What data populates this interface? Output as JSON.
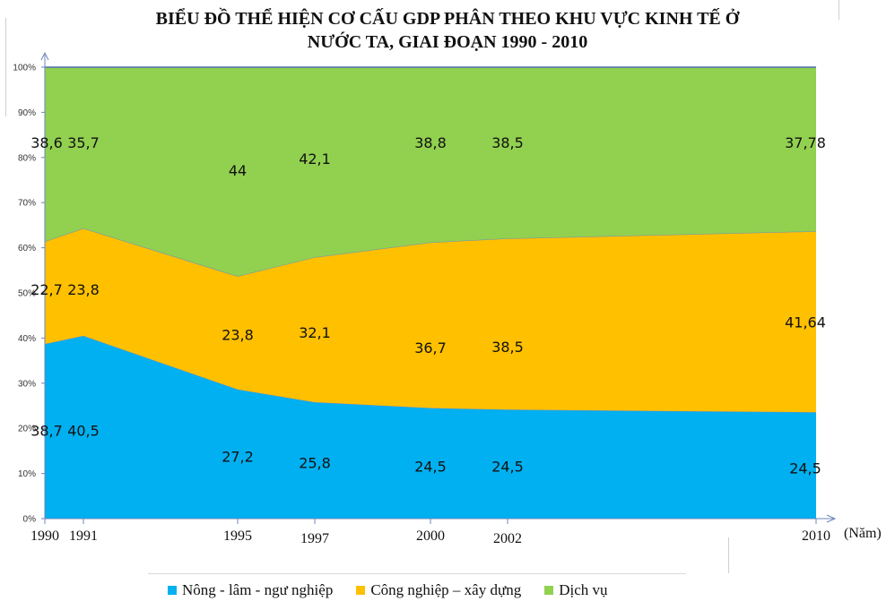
{
  "chart_data": {
    "type": "area",
    "stacked": true,
    "percent_stacked": true,
    "title": [
      "BIỂU ĐỒ THỂ HIỆN CƠ CẤU GDP PHÂN THEO KHU VỰC KINH TẾ Ở",
      "NƯỚC TA, GIAI ĐOẠN 1990 - 2010"
    ],
    "xlabel": "(Năm)",
    "ylabel": "",
    "x": [
      "1990",
      "1991",
      "1995",
      "1997",
      "2000",
      "2002",
      "2010"
    ],
    "x_numeric": [
      1990,
      1991,
      1995,
      1997,
      2000,
      2002,
      2010
    ],
    "xlim": [
      1990,
      2010
    ],
    "ylim": [
      0,
      100
    ],
    "y_ticks": [
      "0%",
      "10%",
      "20%",
      "30%",
      "40%",
      "50%",
      "60%",
      "70%",
      "80%",
      "90%",
      "100%"
    ],
    "grid": false,
    "legend_position": "bottom",
    "series": [
      {
        "name": "Nông - lâm - ngư nghiệp",
        "color": "#00b0f0",
        "values": [
          38.7,
          40.5,
          27.2,
          25.8,
          24.5,
          24.5,
          24.5
        ],
        "labels": [
          "38,7",
          "40,5",
          "27,2",
          "25,8",
          "24,5",
          "24,5",
          "24,5"
        ]
      },
      {
        "name": "Công nghiệp – xây dựng",
        "color": "#ffc000",
        "values": [
          22.7,
          23.8,
          23.8,
          32.1,
          36.7,
          38.5,
          41.64
        ],
        "labels": [
          "22,7",
          "23,8",
          "23,8",
          "32,1",
          "36,7",
          "38,5",
          "41,64"
        ]
      },
      {
        "name": "Dịch vụ",
        "color": "#92d050",
        "values": [
          38.6,
          35.7,
          44,
          42.1,
          38.8,
          38.5,
          37.78
        ],
        "labels": [
          "38,6",
          "35,7",
          "44",
          "42,1",
          "38,8",
          "38,5",
          "37,78"
        ]
      }
    ]
  }
}
